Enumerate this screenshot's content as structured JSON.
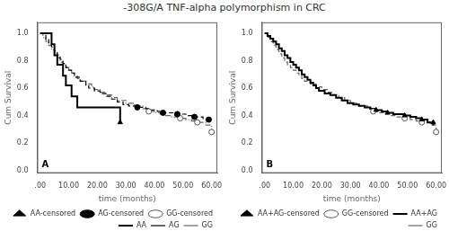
{
  "chart_data": [
    {
      "type": "line",
      "title": "-308G/A TNF-alpha polymorphism in CRC",
      "xlabel": "time (months)",
      "ylabel": "Cum Survival",
      "xlim": [
        -1,
        62
      ],
      "ylim": [
        -0.02,
        1.08
      ],
      "xticks": [
        {
          "value": 0,
          "label": ".00"
        },
        {
          "value": 10,
          "label": "10.00"
        },
        {
          "value": 20,
          "label": "20.00"
        },
        {
          "value": 30,
          "label": "30.00"
        },
        {
          "value": 40,
          "label": "40.00"
        },
        {
          "value": 50,
          "label": "50.00"
        },
        {
          "value": 60,
          "label": "60.00"
        }
      ],
      "yticks": [
        {
          "value": 0,
          "label": "0.0"
        },
        0.2,
        0.4,
        0.6,
        0.8,
        {
          "value": 1,
          "label": "1.0"
        }
      ],
      "grid": false,
      "legend": "lower right",
      "annotations": [
        {
          "text": "A"
        }
      ],
      "series": [
        {
          "name": "AA",
          "type": "step",
          "line_style": "solid",
          "color": "#000000",
          "x": [
            0,
            2,
            4,
            5,
            6,
            8,
            9,
            11,
            13,
            28
          ],
          "values": [
            1.0,
            1.0,
            0.92,
            0.84,
            0.77,
            0.69,
            0.62,
            0.54,
            0.46,
            0.35
          ]
        },
        {
          "name": "AG",
          "type": "step",
          "line_style": "dashed",
          "color": "#000000",
          "x": [
            0,
            2,
            3,
            4,
            5,
            6,
            7,
            8,
            9,
            10,
            11,
            12,
            14,
            16,
            17,
            19,
            21,
            23,
            25,
            27,
            29,
            31,
            34,
            37,
            38,
            41,
            43,
            46,
            48,
            51,
            54,
            57,
            59
          ],
          "values": [
            1.0,
            0.96,
            0.93,
            0.9,
            0.87,
            0.84,
            0.81,
            0.78,
            0.75,
            0.73,
            0.71,
            0.68,
            0.65,
            0.62,
            0.6,
            0.58,
            0.56,
            0.54,
            0.52,
            0.5,
            0.48,
            0.47,
            0.46,
            0.45,
            0.44,
            0.43,
            0.42,
            0.42,
            0.41,
            0.4,
            0.39,
            0.37,
            0.35
          ]
        },
        {
          "name": "GG",
          "type": "step",
          "line_style": "dashdot",
          "color": "#666666",
          "x": [
            0,
            1,
            2,
            3,
            4,
            5,
            6,
            7,
            8,
            9,
            10,
            11,
            12,
            13,
            14,
            16,
            18,
            19,
            21,
            23,
            25,
            27,
            30,
            33,
            36,
            38,
            40,
            42,
            44,
            46,
            49,
            51,
            53,
            55,
            58,
            60
          ],
          "values": [
            1.0,
            0.97,
            0.94,
            0.91,
            0.88,
            0.85,
            0.82,
            0.79,
            0.77,
            0.75,
            0.73,
            0.71,
            0.69,
            0.67,
            0.65,
            0.63,
            0.61,
            0.59,
            0.57,
            0.55,
            0.53,
            0.51,
            0.49,
            0.47,
            0.45,
            0.43,
            0.42,
            0.41,
            0.4,
            0.39,
            0.38,
            0.37,
            0.36,
            0.35,
            0.33,
            0.28
          ]
        },
        {
          "name": "AA-censored",
          "type": "scatter",
          "marker": "triangle",
          "color": "#000000",
          "x": [
            28
          ],
          "values": [
            0.35
          ]
        },
        {
          "name": "AG-censored",
          "type": "scatter",
          "marker": "circle",
          "color": "#000000",
          "x": [
            34,
            43,
            48,
            54,
            59
          ],
          "values": [
            0.46,
            0.42,
            0.41,
            0.39,
            0.37
          ]
        },
        {
          "name": "GG-censored",
          "type": "scatter",
          "marker": "open_circle",
          "color": "#555555",
          "x": [
            38,
            49,
            55,
            60
          ],
          "values": [
            0.43,
            0.38,
            0.35,
            0.28
          ]
        }
      ]
    },
    {
      "type": "line",
      "xlabel": "time (months)",
      "ylabel": "Cum Survival",
      "xlim": [
        -1,
        62
      ],
      "ylim": [
        -0.02,
        1.08
      ],
      "xticks": [
        {
          "value": 0,
          "label": ".00"
        },
        {
          "value": 10,
          "label": "10.00"
        },
        {
          "value": 20,
          "label": "20.00"
        },
        {
          "value": 30,
          "label": "30.00"
        },
        {
          "value": 40,
          "label": "40.00"
        },
        {
          "value": 50,
          "label": "50.00"
        },
        {
          "value": 60,
          "label": "60.00"
        }
      ],
      "yticks": [
        {
          "value": 0,
          "label": "0.0"
        },
        0.2,
        0.4,
        0.6,
        0.8,
        {
          "value": 1,
          "label": "1.0"
        }
      ],
      "grid": false,
      "legend": "lower right",
      "annotations": [
        {
          "text": "B"
        }
      ],
      "series": [
        {
          "name": "AA+AG",
          "type": "step",
          "line_style": "solid",
          "color": "#000000",
          "x": [
            0,
            1,
            2,
            3,
            4,
            5,
            6,
            7,
            8,
            9,
            10,
            11,
            12,
            13,
            14,
            15,
            16,
            17,
            18,
            19,
            21,
            23,
            25,
            27,
            29,
            31,
            33,
            35,
            37,
            39,
            41,
            43,
            45,
            47,
            49,
            51,
            53,
            55,
            57,
            59
          ],
          "values": [
            1.0,
            0.98,
            0.96,
            0.94,
            0.92,
            0.89,
            0.87,
            0.84,
            0.82,
            0.79,
            0.77,
            0.75,
            0.73,
            0.7,
            0.68,
            0.66,
            0.64,
            0.62,
            0.6,
            0.58,
            0.56,
            0.55,
            0.53,
            0.51,
            0.49,
            0.48,
            0.47,
            0.46,
            0.45,
            0.44,
            0.43,
            0.42,
            0.41,
            0.41,
            0.4,
            0.39,
            0.38,
            0.37,
            0.35,
            0.33
          ]
        },
        {
          "name": "GG",
          "type": "step",
          "line_style": "dashed",
          "color": "#666666",
          "x": [
            0,
            1,
            2,
            3,
            4,
            5,
            6,
            7,
            8,
            9,
            10,
            11,
            12,
            13,
            14,
            16,
            18,
            20,
            22,
            24,
            26,
            28,
            30,
            33,
            36,
            38,
            40,
            42,
            44,
            46,
            49,
            51,
            53,
            55,
            58,
            60
          ],
          "values": [
            1.0,
            0.97,
            0.94,
            0.91,
            0.88,
            0.85,
            0.82,
            0.79,
            0.77,
            0.75,
            0.73,
            0.71,
            0.69,
            0.67,
            0.65,
            0.63,
            0.61,
            0.59,
            0.57,
            0.55,
            0.53,
            0.51,
            0.49,
            0.47,
            0.45,
            0.43,
            0.42,
            0.41,
            0.4,
            0.39,
            0.38,
            0.37,
            0.36,
            0.35,
            0.33,
            0.28
          ]
        },
        {
          "name": "AA+AG-censored",
          "type": "scatter",
          "marker": "triangle",
          "color": "#000000",
          "x": [
            39,
            43,
            49,
            55,
            59
          ],
          "values": [
            0.44,
            0.42,
            0.4,
            0.37,
            0.35
          ]
        },
        {
          "name": "GG-censored",
          "type": "scatter",
          "marker": "open_circle",
          "color": "#555555",
          "x": [
            38,
            49,
            55,
            60
          ],
          "values": [
            0.43,
            0.38,
            0.35,
            0.28
          ]
        }
      ]
    }
  ]
}
